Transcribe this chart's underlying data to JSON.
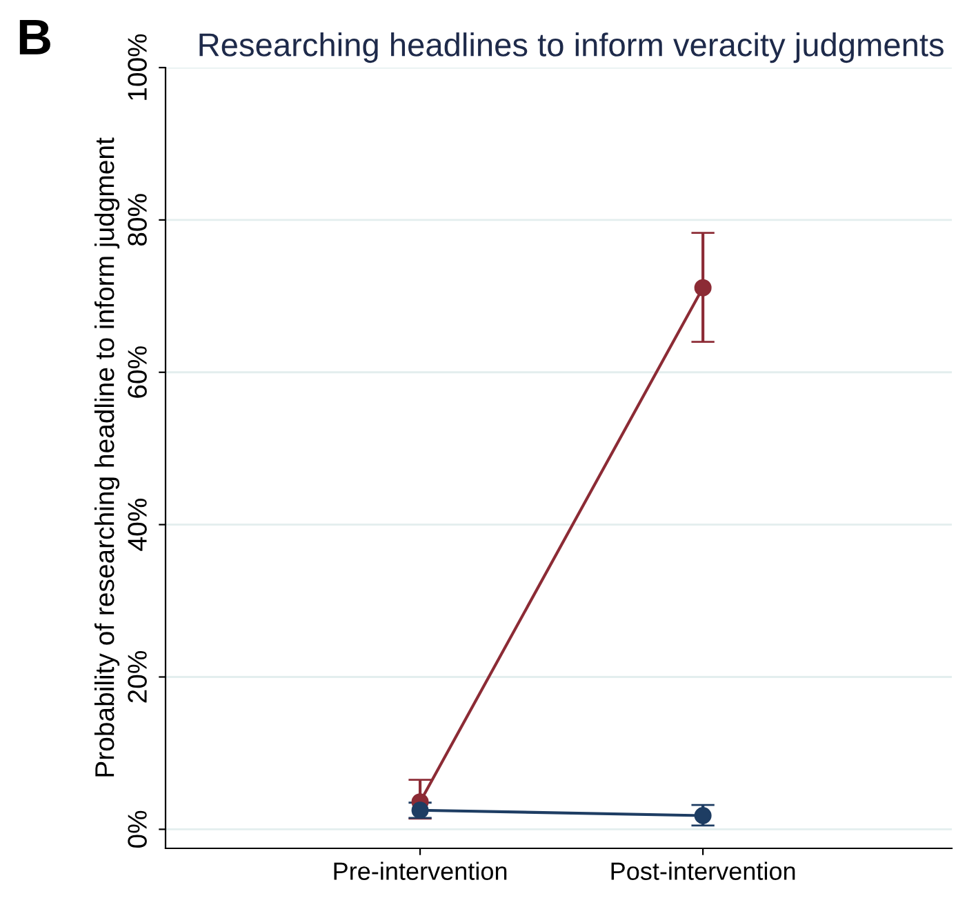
{
  "chart_data": {
    "type": "line",
    "title": "Researching headlines to inform veracity judgments",
    "ylabel": "Probability of researching headline to inform judgment",
    "annotations": [
      "B"
    ],
    "categories": [
      "Pre-intervention",
      "Post-intervention"
    ],
    "series": [
      {
        "color": "#8c2b35",
        "values": [
          3.6,
          71.1
        ],
        "errors": [
          [
            1.4,
            6.5
          ],
          [
            64.0,
            78.3
          ]
        ]
      },
      {
        "color": "#1e3d63",
        "values": [
          2.5,
          1.8
        ],
        "errors": [
          [
            1.5,
            3.5
          ],
          [
            0.5,
            3.2
          ]
        ]
      }
    ],
    "ylim": [
      -2.5,
      100
    ],
    "yticks": [
      {
        "value": 0,
        "label": "0%"
      },
      {
        "value": 20,
        "label": "20%"
      },
      {
        "value": 40,
        "label": "40%"
      },
      {
        "value": 60,
        "label": "60%"
      },
      {
        "value": 80,
        "label": "80%"
      },
      {
        "value": 100,
        "label": "100%"
      }
    ],
    "grid": "y",
    "marker": "circle",
    "line_style": "solid",
    "legend": false
  }
}
